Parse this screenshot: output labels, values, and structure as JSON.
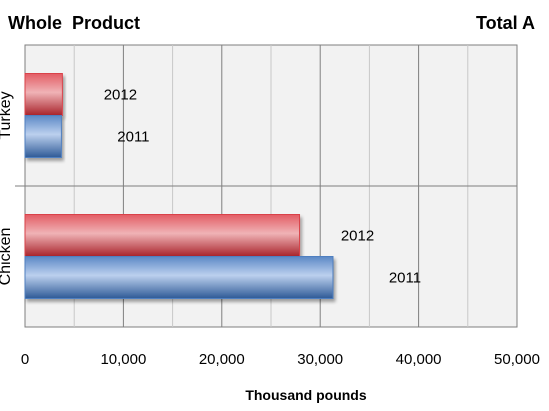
{
  "header": {
    "left_title": "Whole  Product",
    "right_title": "Total A"
  },
  "chart_data": {
    "type": "bar",
    "orientation": "horizontal",
    "categories": [
      "Turkey",
      "Chicken"
    ],
    "series": [
      {
        "name": "2012",
        "values": [
          3800,
          27900
        ],
        "color": "#d9434a"
      },
      {
        "name": "2011",
        "values": [
          3700,
          31300
        ],
        "color": "#4f7fc0"
      }
    ],
    "xlabel": "Thousand pounds",
    "xlim": [
      0,
      50000
    ],
    "xticks": [
      "0",
      "10,000",
      "20,000",
      "30,000",
      "40,000",
      "50,000"
    ],
    "grid": true,
    "plot_background": "#f2f2f2"
  }
}
